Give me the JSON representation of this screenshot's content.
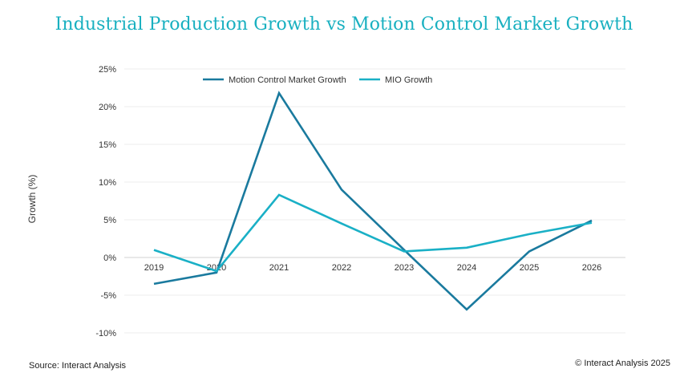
{
  "header": {
    "title": "Industrial Production Growth vs Motion Control Market Growth"
  },
  "footer": {
    "source": "Source: Interact Analysis",
    "copyright": "© Interact Analysis 2025"
  },
  "chart_data": {
    "type": "line",
    "title": "Industrial Production Growth vs Motion Control Market Growth",
    "xlabel": "",
    "ylabel": "Growth (%)",
    "categories": [
      "2019",
      "2020",
      "2021",
      "2022",
      "2023",
      "2024",
      "2025",
      "2026"
    ],
    "ylim": [
      -10,
      25
    ],
    "yticks": [
      25,
      20,
      15,
      10,
      5,
      0,
      -5,
      -10
    ],
    "ytick_labels": [
      "25%",
      "20%",
      "15%",
      "10%",
      "5%",
      "0%",
      "-5%",
      "-10%"
    ],
    "grid": true,
    "legend_position": "top-left",
    "series": [
      {
        "name": "Motion Control Market Growth",
        "color": "#1a7a9e",
        "values": [
          -3.5,
          -2.0,
          21.8,
          9.0,
          1.0,
          -6.9,
          0.8,
          4.9
        ]
      },
      {
        "name": "MIO Growth",
        "color": "#1ab0c6",
        "values": [
          1.0,
          -1.8,
          8.3,
          4.5,
          0.8,
          1.3,
          3.1,
          4.6
        ]
      }
    ]
  }
}
